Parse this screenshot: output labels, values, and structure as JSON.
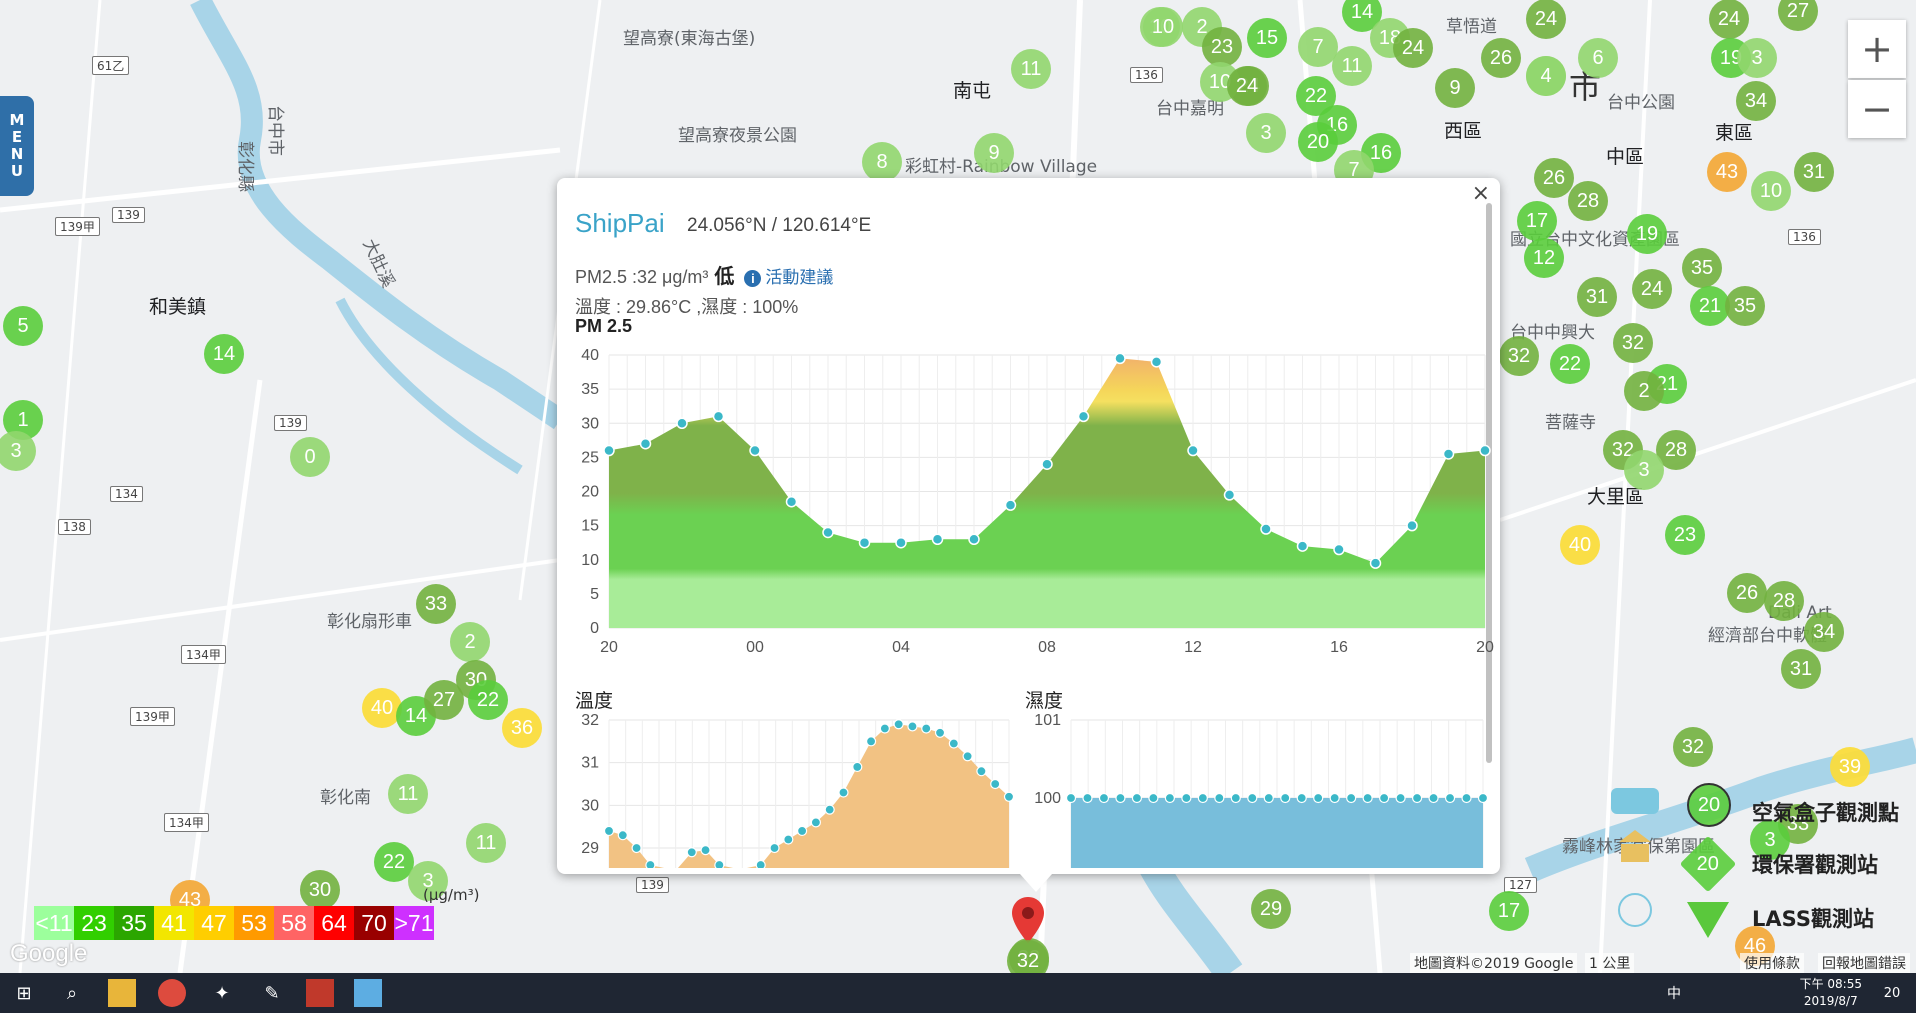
{
  "map": {
    "labels": {
      "l1": "望高寮(東海古堡)",
      "l2": "望高寮夜景公園",
      "l3": "南屯",
      "l4": "彩虹村-Rainbow Village",
      "l5": "台中嘉明",
      "l6": "草悟道",
      "l7": "西區",
      "l8": "台中公園",
      "l9": "東區",
      "l10": "中區",
      "l11": "市",
      "l12": "和美鎮",
      "l13": "彰化扇形車",
      "l14": "彰化南",
      "l15": "大里區",
      "l16": "菩薩寺",
      "l17": "台中中興大",
      "l18": "國立台中文化資產園區",
      "l19": "Dali Art",
      "l20": "經濟部台中軟體",
      "l21": "霧峰林家宮保第園區",
      "l22": "大肚溪",
      "l23": "台中市",
      "l24": "彰化縣"
    },
    "roads": {
      "r1": "61乙",
      "r2": "139甲",
      "r3": "139",
      "r4": "134",
      "r5": "138",
      "r6": "139",
      "r7": "134甲",
      "r8": "139甲",
      "r9": "134甲",
      "r10": "136",
      "r11": "136",
      "r12": "139",
      "r13": "127"
    },
    "markers": [
      "10",
      "10",
      "2",
      "15",
      "14",
      "18",
      "24",
      "24",
      "27",
      "24",
      "24",
      "4",
      "11",
      "23",
      "7",
      "11",
      "26",
      "9",
      "6",
      "19",
      "3",
      "4",
      "10",
      "24",
      "22",
      "16",
      "34",
      "3",
      "20",
      "16",
      "7",
      "43",
      "10",
      "31",
      "26",
      "28",
      "17",
      "19",
      "12",
      "35",
      "24",
      "31",
      "21",
      "35",
      "32",
      "22",
      "32",
      "21",
      "2",
      "32",
      "28",
      "3",
      "40",
      "23",
      "26",
      "28",
      "34",
      "31",
      "32",
      "39",
      "33",
      "17",
      "29",
      "46",
      "3",
      "5",
      "1",
      "3",
      "14",
      "0",
      "33",
      "2",
      "30",
      "40",
      "14",
      "27",
      "22",
      "36",
      "11",
      "11",
      "30",
      "22",
      "3",
      "43",
      "32",
      "8",
      "9"
    ]
  },
  "zoom": {
    "in_label": "+",
    "out_label": "−"
  },
  "menu": {
    "letters": [
      "M",
      "E",
      "N",
      "U"
    ]
  },
  "popup": {
    "station_name": "ShipPai",
    "coords": "24.056°N / 120.614°E",
    "pm_text": "PM2.5 :32 μg/m³",
    "pm_level": "低",
    "advice": "活動建議",
    "temp_humidity": "溫度 : 29.86°C ,濕度 : 100%",
    "pm_title": "PM 2.5",
    "temp_title": "溫度",
    "humidity_title": "濕度",
    "close_label": "×"
  },
  "chart_data": [
    {
      "type": "area",
      "title": "PM 2.5",
      "x_ticks": [
        "20",
        "00",
        "04",
        "08",
        "12",
        "16",
        "20"
      ],
      "y_ticks": [
        0,
        5,
        10,
        15,
        20,
        25,
        30,
        35,
        40
      ],
      "ylim": [
        0,
        40
      ],
      "x": [
        0,
        1,
        2,
        3,
        4,
        5,
        6,
        7,
        8,
        9,
        10,
        11,
        12,
        13,
        14,
        15,
        16,
        17,
        18,
        19,
        20,
        21,
        22,
        23,
        24
      ],
      "values": [
        26,
        27,
        30,
        31,
        26,
        18.5,
        14,
        12.5,
        12.5,
        13,
        13,
        18,
        24,
        31,
        39.5,
        39,
        26,
        19.5,
        14.5,
        12,
        11.5,
        9.5,
        15,
        25.5,
        26
      ]
    },
    {
      "type": "area",
      "title": "溫度",
      "y_ticks": [
        29,
        30,
        31,
        32
      ],
      "ylim": [
        28.5,
        32
      ],
      "values": [
        29.4,
        29.3,
        29.0,
        28.6,
        28.4,
        28.5,
        28.9,
        28.95,
        28.6,
        28.4,
        28.3,
        28.6,
        29.0,
        29.2,
        29.4,
        29.6,
        29.9,
        30.3,
        30.9,
        31.5,
        31.8,
        31.9,
        31.85,
        31.8,
        31.7,
        31.45,
        31.15,
        30.8,
        30.5,
        30.2
      ]
    },
    {
      "type": "area",
      "title": "濕度",
      "y_ticks": [
        100,
        101
      ],
      "ylim": [
        99.5,
        101
      ],
      "values": [
        100,
        100,
        100,
        100,
        100,
        100,
        100,
        100,
        100,
        100,
        100,
        100,
        100,
        100,
        100,
        100,
        100,
        100,
        100,
        100,
        100,
        100,
        100,
        100,
        100,
        100
      ]
    }
  ],
  "legend": {
    "unit": "(μg/m³)",
    "cells": [
      {
        "label": "<11",
        "color": "#9cff9c"
      },
      {
        "label": "23",
        "color": "#31cf00"
      },
      {
        "label": "35",
        "color": "#2ba600"
      },
      {
        "label": "41",
        "color": "#f2e600"
      },
      {
        "label": "47",
        "color": "#ffce00"
      },
      {
        "label": "53",
        "color": "#ff9a00"
      },
      {
        "label": "58",
        "color": "#ff6464"
      },
      {
        "label": "64",
        "color": "#ff0000"
      },
      {
        "label": "70",
        "color": "#990000"
      },
      {
        "label": ">71",
        "color": "#ce30ff"
      }
    ]
  },
  "station_legend": {
    "airbox": "空氣盒子觀測點",
    "epa": "環保署觀測站",
    "lass": "LASS觀測站",
    "value": "20"
  },
  "attribution": {
    "data": "地圖資料©2019 Google",
    "scale": "1 公里",
    "terms": "使用條款",
    "report": "回報地圖錯誤",
    "google": "Google"
  },
  "pin_value": "32",
  "taskbar": {
    "time": "下午 08:55",
    "date": "2019/8/7",
    "notif": "20",
    "ime": "中"
  }
}
